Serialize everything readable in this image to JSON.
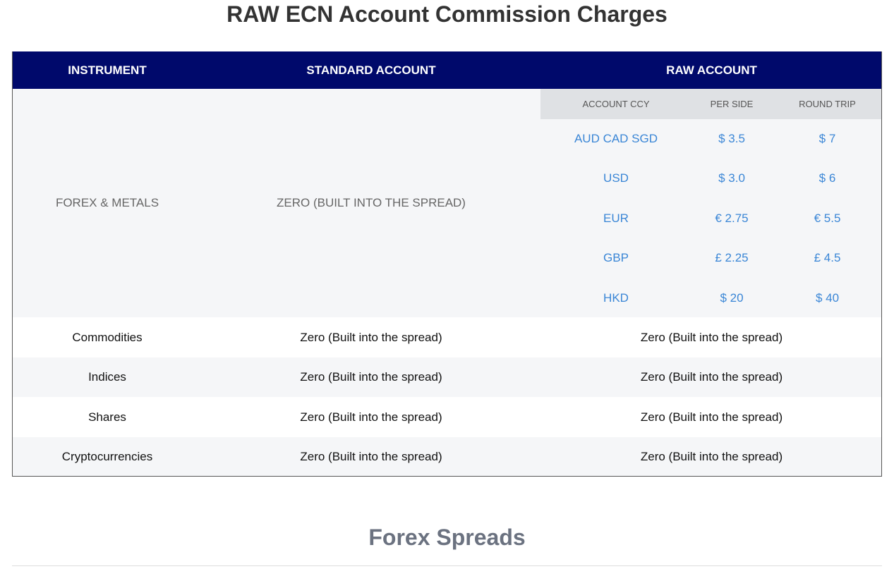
{
  "title": "RAW ECN Account Commission Charges",
  "table": {
    "headers": [
      "INSTRUMENT",
      "STANDARD ACCOUNT",
      "RAW ACCOUNT"
    ],
    "forex": {
      "instrument": "FOREX & METALS",
      "standard": "ZERO (BUILT INTO THE SPREAD)",
      "sub_headers": [
        "ACCOUNT CCY",
        "PER SIDE",
        "ROUND TRIP"
      ],
      "rows": [
        [
          "AUD CAD SGD",
          "$ 3.5",
          "$ 7"
        ],
        [
          "USD",
          "$ 3.0",
          "$ 6"
        ],
        [
          "EUR",
          "€ 2.75",
          "€ 5.5"
        ],
        [
          "GBP",
          "£ 2.25",
          "£ 4.5"
        ],
        [
          "HKD",
          "$ 20",
          "$ 40"
        ]
      ]
    },
    "rows": [
      [
        "Commodities",
        "Zero (Built into the spread)",
        "Zero (Built into the spread)"
      ],
      [
        "Indices",
        "Zero (Built into the spread)",
        "Zero (Built into the spread)"
      ],
      [
        "Shares",
        "Zero (Built into the spread)",
        "Zero (Built into the spread)"
      ],
      [
        "Cryptocurrencies",
        "Zero (Built into the spread)",
        "Zero (Built into the spread)"
      ]
    ]
  },
  "section_title": "Forex Spreads"
}
